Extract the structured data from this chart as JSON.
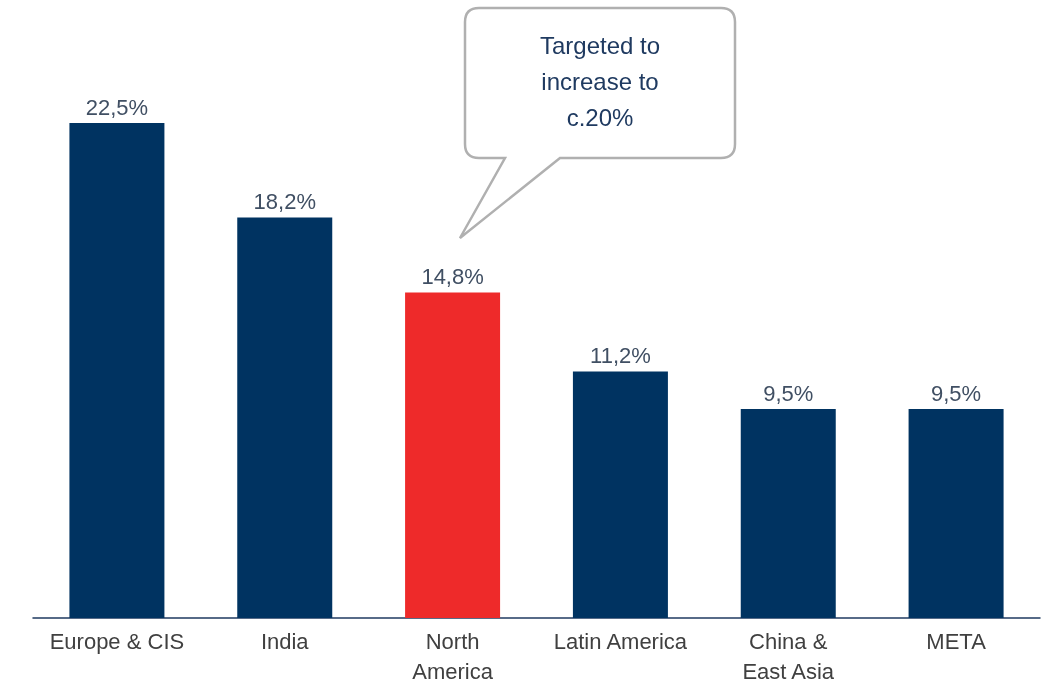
{
  "chart_data": {
    "type": "bar",
    "categories": [
      "Europe & CIS",
      "India",
      "North\nAmerica",
      "Latin America",
      "China &\nEast Asia",
      "META"
    ],
    "values": [
      22.5,
      18.2,
      14.8,
      11.2,
      9.5,
      9.5
    ],
    "colors": [
      "#003361",
      "#003361",
      "#ee2a2a",
      "#003361",
      "#003361",
      "#003361"
    ],
    "value_labels": [
      "22,5%",
      "18,2%",
      "14,8%",
      "11,2%",
      "9,5%",
      "9,5%"
    ],
    "annotations": [
      "Targeted to\nincrease to\nc.20%"
    ]
  }
}
